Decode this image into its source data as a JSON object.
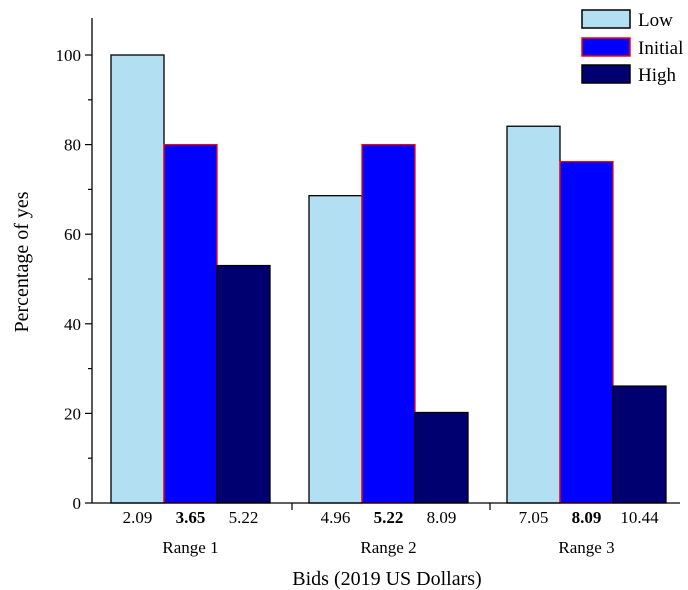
{
  "chart_data": {
    "type": "bar",
    "title": "",
    "xlabel": "Bids (2019 US Dollars)",
    "ylabel": "Percentage of yes",
    "ylim": [
      0,
      108
    ],
    "yticks": [
      "0",
      "20",
      "40",
      "60",
      "80",
      "100"
    ],
    "categories": [
      "Range 1",
      "Range 2",
      "Range 3"
    ],
    "series": [
      {
        "name": "Low",
        "color": "#b3dff3",
        "stroke": "#000000",
        "values": [
          100,
          68.6,
          84.1
        ]
      },
      {
        "name": "Initial",
        "color": "#0000ff",
        "stroke": "#ff0000",
        "values": [
          80,
          80,
          76.2
        ]
      },
      {
        "name": "High",
        "color": "#000070",
        "stroke": "#000000",
        "values": [
          53,
          20.2,
          26.1
        ]
      }
    ],
    "bid_labels": [
      [
        "2.09",
        "3.65",
        "5.22"
      ],
      [
        "4.96",
        "5.22",
        "8.09"
      ],
      [
        "7.05",
        "8.09",
        "10.44"
      ]
    ],
    "bold_series_index": 1,
    "legend": {
      "placement": "top-right"
    },
    "grid": false
  }
}
